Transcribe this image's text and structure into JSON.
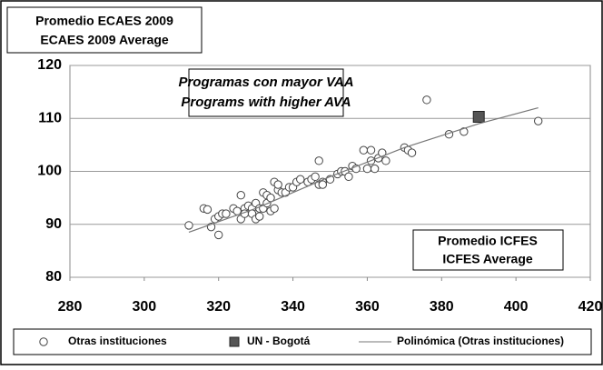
{
  "chart_data": {
    "type": "scatter",
    "ylabel": [
      "Promedio ECAES 2009",
      "ECAES 2009 Average"
    ],
    "xlabel": [
      "Promedio ICFES",
      "ICFES Average"
    ],
    "annotation": [
      "Programas con mayor VAA",
      "Programs with higher AVA"
    ],
    "xlim": [
      280,
      420
    ],
    "xticks": [
      280,
      300,
      320,
      340,
      360,
      380,
      400,
      420
    ],
    "ylim": [
      80,
      120
    ],
    "yticks": [
      80,
      90,
      100,
      110,
      120
    ],
    "grid": true,
    "legend": "bottom",
    "series": [
      {
        "name": "Otras instituciones",
        "marker": "circle",
        "color": "#ffffff",
        "x": [
          312,
          316,
          317,
          318,
          319,
          320,
          320,
          321,
          322,
          324,
          325,
          326,
          326,
          327,
          327,
          328,
          329,
          329,
          330,
          330,
          331,
          331,
          332,
          332,
          333,
          333,
          334,
          334,
          335,
          335,
          336,
          336,
          337,
          338,
          339,
          340,
          341,
          342,
          344,
          345,
          346,
          347,
          347,
          348,
          348,
          350,
          352,
          353,
          354,
          355,
          356,
          357,
          359,
          360,
          361,
          361,
          362,
          363,
          364,
          365,
          370,
          371,
          372,
          376,
          382,
          386,
          406
        ],
        "values": [
          89.8,
          93,
          92.8,
          89.5,
          91,
          91.5,
          88,
          92,
          92,
          93,
          92.5,
          95.5,
          91,
          93,
          92,
          93.5,
          93,
          92,
          94,
          91,
          93,
          91.5,
          96,
          93,
          95.5,
          94,
          92.5,
          95,
          98,
          93,
          96.5,
          97.5,
          96,
          96,
          97,
          97,
          98,
          98.5,
          98,
          98.5,
          99,
          102,
          97.5,
          98,
          97.5,
          98.5,
          99.5,
          100,
          100,
          99,
          101,
          100.5,
          104,
          100.5,
          102,
          104,
          100.5,
          102.5,
          103.5,
          102,
          104.5,
          104,
          103.5,
          113.5,
          107,
          107.5,
          109.5
        ]
      },
      {
        "name": "UN - Bogotá",
        "marker": "square",
        "color": "#555555",
        "x": [
          390
        ],
        "values": [
          110.3
        ]
      },
      {
        "name": "Polinómica (Otras instituciones)",
        "marker": "line",
        "color": "#777777",
        "x": [
          312,
          330,
          350,
          370,
          390,
          406
        ],
        "values": [
          88.5,
          93,
          99,
          104.5,
          109,
          112
        ]
      }
    ]
  }
}
